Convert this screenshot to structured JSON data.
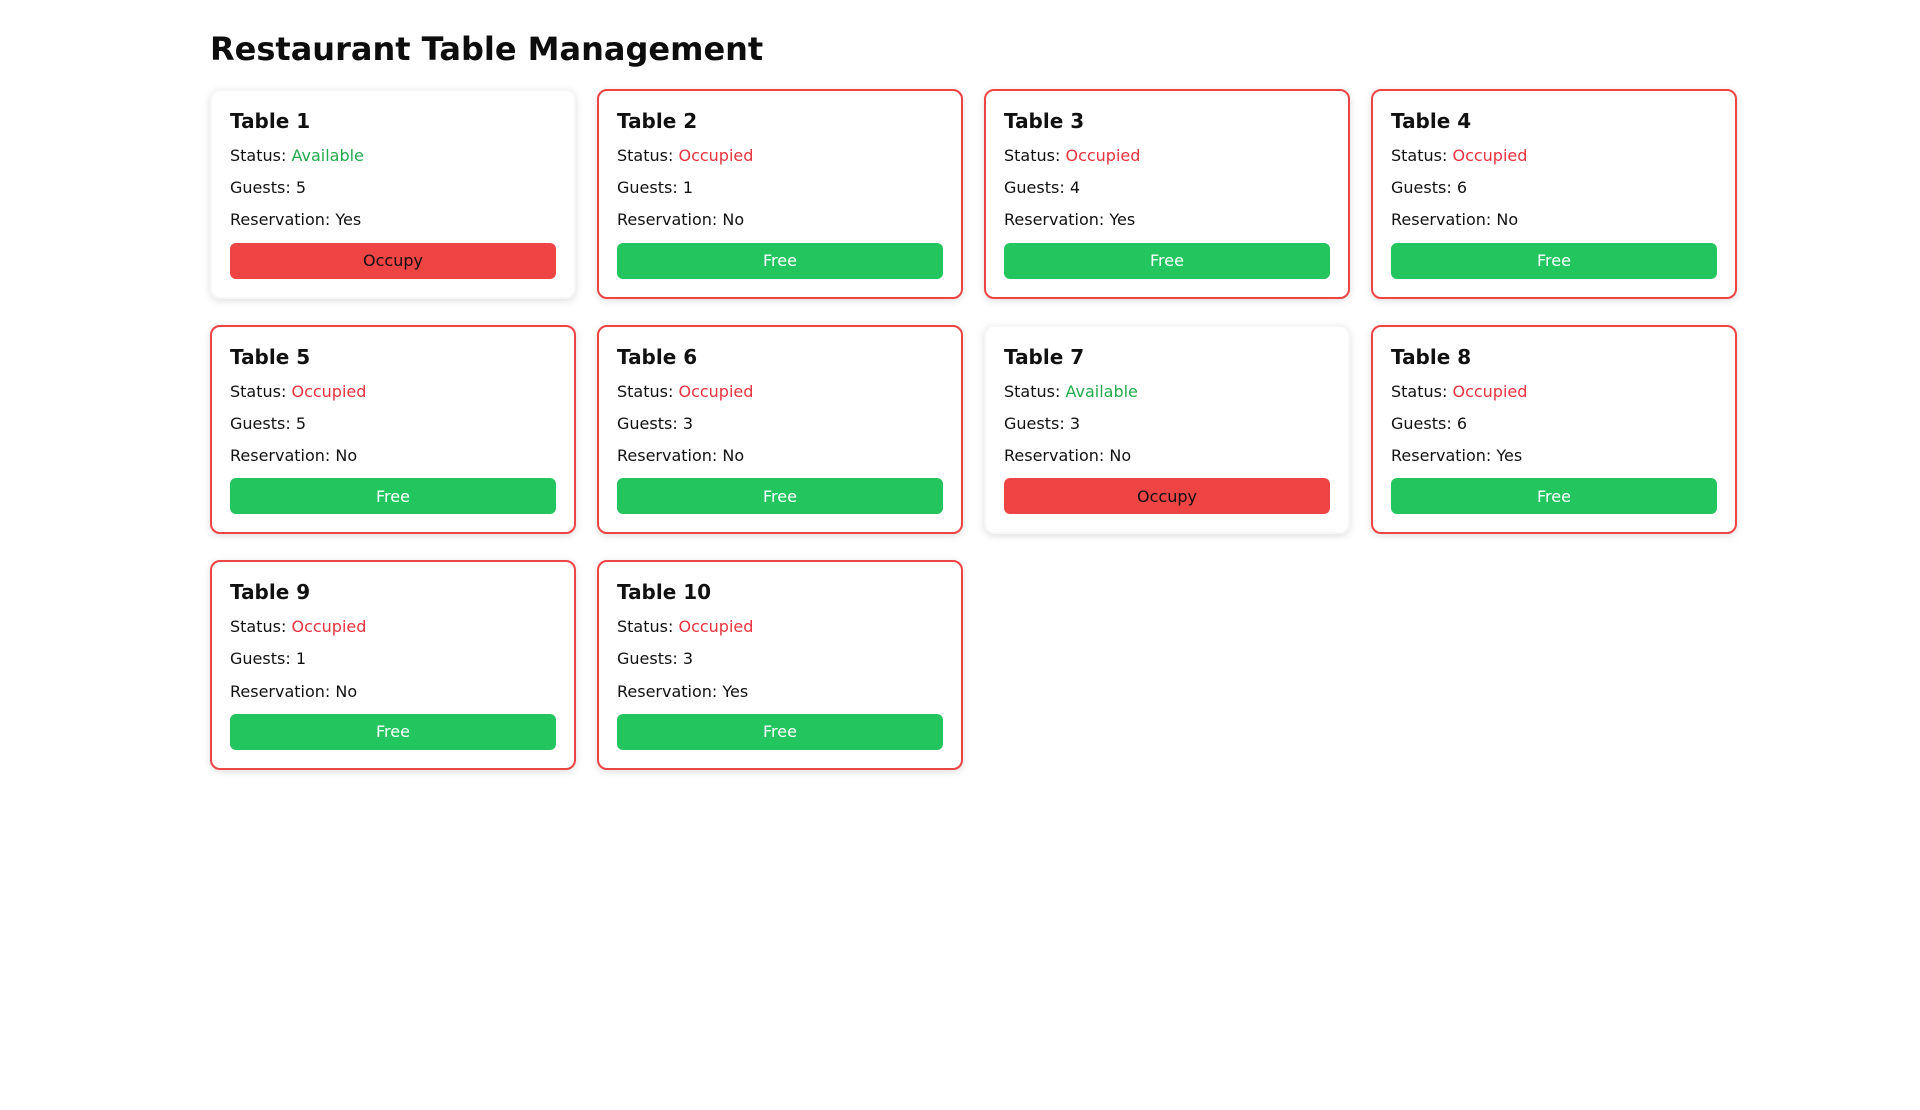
{
  "page": {
    "title": "Restaurant Table Management"
  },
  "labels": {
    "status": "Status:",
    "guests": "Guests:",
    "reservation": "Reservation:"
  },
  "colors": {
    "occupied_red": "#ef4444",
    "status_red_text": "#e8323e",
    "free_green": "#22c55e",
    "status_green_text": "#22ab4d"
  },
  "tables": [
    {
      "name": "Table 1",
      "status": "Available",
      "guests": "5",
      "reservation": "Yes",
      "action": "Occupy"
    },
    {
      "name": "Table 2",
      "status": "Occupied",
      "guests": "1",
      "reservation": "No",
      "action": "Free"
    },
    {
      "name": "Table 3",
      "status": "Occupied",
      "guests": "4",
      "reservation": "Yes",
      "action": "Free"
    },
    {
      "name": "Table 4",
      "status": "Occupied",
      "guests": "6",
      "reservation": "No",
      "action": "Free"
    },
    {
      "name": "Table 5",
      "status": "Occupied",
      "guests": "5",
      "reservation": "No",
      "action": "Free"
    },
    {
      "name": "Table 6",
      "status": "Occupied",
      "guests": "3",
      "reservation": "No",
      "action": "Free"
    },
    {
      "name": "Table 7",
      "status": "Available",
      "guests": "3",
      "reservation": "No",
      "action": "Occupy"
    },
    {
      "name": "Table 8",
      "status": "Occupied",
      "guests": "6",
      "reservation": "Yes",
      "action": "Free"
    },
    {
      "name": "Table 9",
      "status": "Occupied",
      "guests": "1",
      "reservation": "No",
      "action": "Free"
    },
    {
      "name": "Table 10",
      "status": "Occupied",
      "guests": "3",
      "reservation": "Yes",
      "action": "Free"
    }
  ]
}
